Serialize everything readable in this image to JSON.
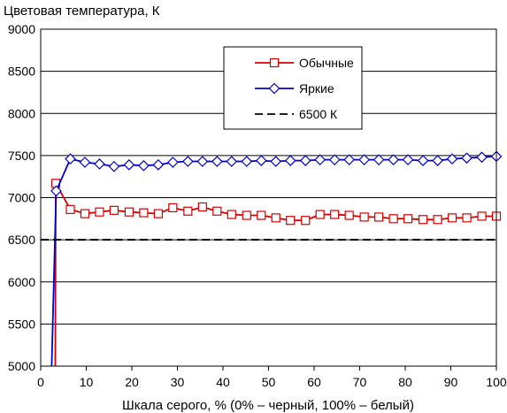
{
  "chart_data": {
    "type": "line",
    "title": "",
    "ylabel": "Цветовая температура, К",
    "xlabel": "Шкала серого, % (0% – черный, 100% – белый)",
    "xlim": [
      0,
      100
    ],
    "ylim": [
      5000,
      9000
    ],
    "x_ticks": [
      0,
      10,
      20,
      30,
      40,
      50,
      60,
      70,
      80,
      90,
      100
    ],
    "y_ticks": [
      5000,
      5500,
      6000,
      6500,
      7000,
      7500,
      8000,
      8500,
      9000
    ],
    "grid": true,
    "legend_position": "top-right",
    "series": [
      {
        "name": "Обычные",
        "color": "#d40000",
        "marker": "square",
        "x": [
          3.2,
          3.3,
          6.5,
          9.7,
          12.9,
          16.1,
          19.4,
          22.6,
          25.8,
          29.0,
          32.3,
          35.5,
          38.7,
          41.9,
          45.2,
          48.4,
          51.6,
          54.8,
          58.1,
          61.3,
          64.5,
          67.7,
          71.0,
          74.2,
          77.4,
          80.6,
          83.9,
          87.1,
          90.3,
          93.5,
          96.8,
          100
        ],
        "y": [
          5000,
          7170,
          6860,
          6810,
          6830,
          6850,
          6830,
          6820,
          6810,
          6880,
          6840,
          6890,
          6840,
          6800,
          6790,
          6790,
          6760,
          6730,
          6730,
          6800,
          6800,
          6790,
          6770,
          6770,
          6750,
          6750,
          6740,
          6740,
          6760,
          6760,
          6780,
          6780
        ]
      },
      {
        "name": "Яркие",
        "color": "#0000cc",
        "marker": "diamond",
        "x": [
          2.4,
          3.4,
          6.5,
          9.7,
          12.9,
          16.1,
          19.4,
          22.6,
          25.8,
          29.0,
          32.3,
          35.5,
          38.7,
          41.9,
          45.2,
          48.4,
          51.6,
          54.8,
          58.1,
          61.3,
          64.5,
          67.7,
          71.0,
          74.2,
          77.4,
          80.6,
          83.9,
          87.1,
          90.3,
          93.5,
          96.8,
          100
        ],
        "y": [
          5000,
          7080,
          7460,
          7420,
          7400,
          7370,
          7390,
          7380,
          7390,
          7420,
          7430,
          7430,
          7430,
          7430,
          7430,
          7440,
          7430,
          7440,
          7440,
          7450,
          7450,
          7450,
          7450,
          7450,
          7450,
          7450,
          7440,
          7440,
          7460,
          7470,
          7480,
          7490
        ]
      },
      {
        "name": "6500 К",
        "color": "#000000",
        "marker": "none",
        "dashed": true,
        "x": [
          0,
          100
        ],
        "y": [
          6500,
          6500
        ]
      }
    ]
  }
}
